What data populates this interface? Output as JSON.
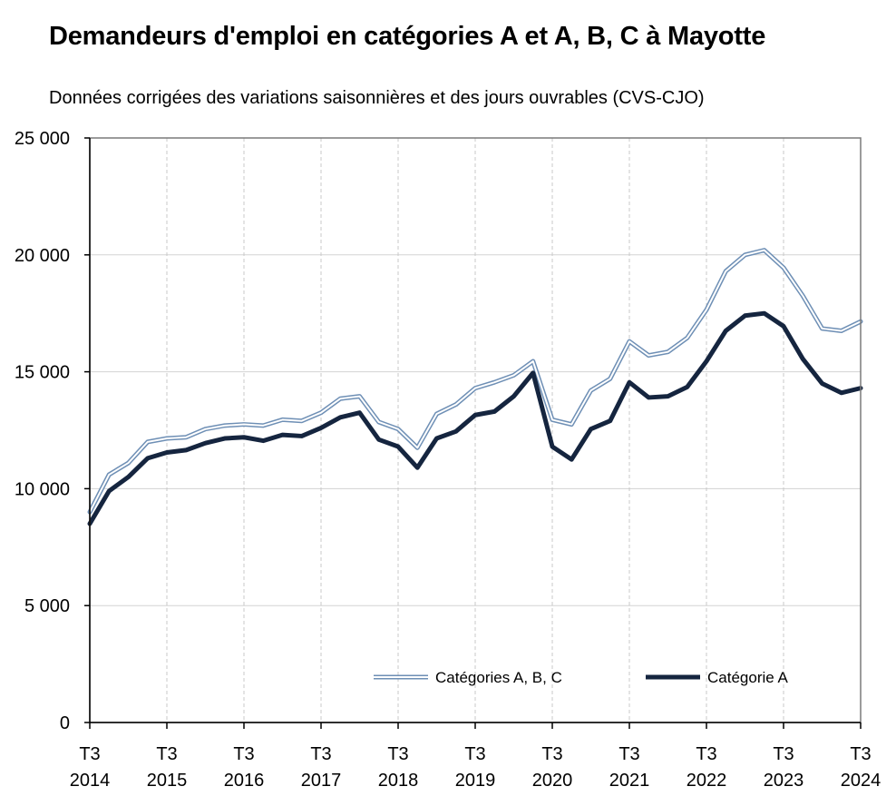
{
  "chart_data": {
    "type": "line",
    "title": "Demandeurs d'emploi en catégories A et A, B, C à Mayotte",
    "subtitle": "Données corrigées des variations saisonnières et des jours ouvrables (CVS-CJO)",
    "xlabel": "",
    "ylabel": "",
    "ylim": [
      0,
      25000
    ],
    "y_ticks": [
      0,
      5000,
      10000,
      15000,
      20000,
      25000
    ],
    "y_tick_labels": [
      "0",
      "5 000",
      "10 000",
      "15 000",
      "20 000",
      "25 000"
    ],
    "x_tick_labels": [
      {
        "line1": "T3",
        "line2": "2014"
      },
      {
        "line1": "T3",
        "line2": "2015"
      },
      {
        "line1": "T3",
        "line2": "2016"
      },
      {
        "line1": "T3",
        "line2": "2017"
      },
      {
        "line1": "T3",
        "line2": "2018"
      },
      {
        "line1": "T3",
        "line2": "2019"
      },
      {
        "line1": "T3",
        "line2": "2020"
      },
      {
        "line1": "T3",
        "line2": "2021"
      },
      {
        "line1": "T3",
        "line2": "2022"
      },
      {
        "line1": "T3",
        "line2": "2023"
      },
      {
        "line1": "T3",
        "line2": "2024"
      }
    ],
    "quarters_per_tick": 4,
    "grid": true,
    "legend_position": "bottom",
    "series": [
      {
        "name": "Catégories A, B, C",
        "style": "double",
        "color": "#6e8fb5",
        "values": [
          9000,
          10600,
          11100,
          12000,
          12150,
          12200,
          12550,
          12700,
          12750,
          12700,
          12950,
          12900,
          13250,
          13850,
          13950,
          12850,
          12550,
          11750,
          13200,
          13600,
          14300,
          14550,
          14850,
          15450,
          12950,
          12750,
          14200,
          14700,
          16300,
          15700,
          15850,
          16450,
          17650,
          19300,
          20000,
          20200,
          19450,
          18250,
          16850,
          16750,
          17150
        ]
      },
      {
        "name": "Catégorie A",
        "style": "thick",
        "color": "#15253f",
        "values": [
          8500,
          9900,
          10500,
          11300,
          11550,
          11650,
          11950,
          12150,
          12200,
          12050,
          12300,
          12250,
          12600,
          13050,
          13250,
          12100,
          11800,
          10900,
          12150,
          12450,
          13150,
          13300,
          13950,
          14950,
          11800,
          11250,
          12550,
          12900,
          14550,
          13900,
          13950,
          14350,
          15450,
          16750,
          17400,
          17500,
          16950,
          15550,
          14500,
          14100,
          14300
        ]
      }
    ]
  }
}
